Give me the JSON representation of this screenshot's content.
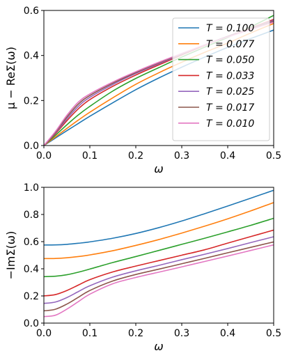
{
  "chart_data": [
    {
      "type": "line",
      "xlabel": "ω",
      "ylabel": "μ − ReΣ(ω)",
      "xlim": [
        0.0,
        0.5
      ],
      "ylim": [
        0.0,
        0.6
      ],
      "xticks": [
        "0.0",
        "0.1",
        "0.2",
        "0.3",
        "0.4",
        "0.5"
      ],
      "yticks": [
        "0.0",
        "0.2",
        "0.4",
        "0.6"
      ],
      "grid": false,
      "legend_location": "upper right",
      "x": [
        0.0,
        0.025,
        0.05,
        0.075,
        0.1,
        0.15,
        0.2,
        0.25,
        0.3,
        0.35,
        0.4,
        0.45,
        0.5
      ],
      "series": [
        {
          "name": "T = 0.100",
          "color": "#1f77b4",
          "values": [
            0.0,
            0.033,
            0.066,
            0.098,
            0.13,
            0.19,
            0.248,
            0.3,
            0.348,
            0.393,
            0.436,
            0.475,
            0.513
          ]
        },
        {
          "name": "T = 0.077",
          "color": "#ff7f0e",
          "values": [
            0.0,
            0.038,
            0.076,
            0.113,
            0.148,
            0.212,
            0.272,
            0.323,
            0.37,
            0.414,
            0.455,
            0.5,
            0.542
          ]
        },
        {
          "name": "T = 0.050",
          "color": "#2ca02c",
          "values": [
            0.0,
            0.045,
            0.092,
            0.136,
            0.174,
            0.242,
            0.298,
            0.346,
            0.393,
            0.437,
            0.48,
            0.527,
            0.578
          ]
        },
        {
          "name": "T = 0.033",
          "color": "#d62728",
          "values": [
            0.0,
            0.052,
            0.11,
            0.163,
            0.204,
            0.263,
            0.313,
            0.358,
            0.402,
            0.445,
            0.485,
            0.522,
            0.56
          ]
        },
        {
          "name": "T = 0.025",
          "color": "#9467bd",
          "values": [
            0.0,
            0.055,
            0.118,
            0.174,
            0.214,
            0.271,
            0.32,
            0.363,
            0.405,
            0.447,
            0.485,
            0.52,
            0.556
          ]
        },
        {
          "name": "T = 0.017",
          "color": "#8c564b",
          "values": [
            0.0,
            0.058,
            0.126,
            0.184,
            0.222,
            0.277,
            0.324,
            0.367,
            0.407,
            0.447,
            0.484,
            0.518,
            0.552
          ]
        },
        {
          "name": "T = 0.010",
          "color": "#e377c2",
          "values": [
            0.0,
            0.062,
            0.134,
            0.193,
            0.229,
            0.282,
            0.328,
            0.37,
            0.409,
            0.447,
            0.482,
            0.515,
            0.548
          ]
        }
      ]
    },
    {
      "type": "line",
      "xlabel": "ω",
      "ylabel": "−ImΣ(ω)",
      "xlim": [
        0.0,
        0.5
      ],
      "ylim": [
        0.0,
        1.0
      ],
      "xticks": [
        "0.0",
        "0.1",
        "0.2",
        "0.3",
        "0.4",
        "0.5"
      ],
      "yticks": [
        "0.0",
        "0.2",
        "0.4",
        "0.6",
        "0.8",
        "1.0"
      ],
      "grid": false,
      "x": [
        0.0,
        0.025,
        0.05,
        0.075,
        0.1,
        0.15,
        0.2,
        0.25,
        0.3,
        0.35,
        0.4,
        0.45,
        0.5
      ],
      "series": [
        {
          "name": "T = 0.100",
          "color": "#1f77b4",
          "values": [
            0.575,
            0.576,
            0.58,
            0.588,
            0.598,
            0.625,
            0.66,
            0.703,
            0.752,
            0.806,
            0.862,
            0.92,
            0.978
          ]
        },
        {
          "name": "T = 0.077",
          "color": "#ff7f0e",
          "values": [
            0.475,
            0.476,
            0.481,
            0.49,
            0.502,
            0.533,
            0.572,
            0.615,
            0.663,
            0.714,
            0.768,
            0.826,
            0.888
          ]
        },
        {
          "name": "T = 0.050",
          "color": "#2ca02c",
          "values": [
            0.342,
            0.345,
            0.356,
            0.375,
            0.398,
            0.446,
            0.49,
            0.535,
            0.58,
            0.625,
            0.672,
            0.72,
            0.772
          ]
        },
        {
          "name": "T = 0.033",
          "color": "#d62728",
          "values": [
            0.2,
            0.21,
            0.24,
            0.28,
            0.32,
            0.377,
            0.42,
            0.46,
            0.5,
            0.54,
            0.589,
            0.637,
            0.685
          ]
        },
        {
          "name": "T = 0.025",
          "color": "#9467bd",
          "values": [
            0.145,
            0.155,
            0.188,
            0.232,
            0.275,
            0.339,
            0.385,
            0.425,
            0.467,
            0.507,
            0.549,
            0.593,
            0.636
          ]
        },
        {
          "name": "T = 0.017",
          "color": "#8c564b",
          "values": [
            0.09,
            0.102,
            0.14,
            0.19,
            0.24,
            0.31,
            0.358,
            0.397,
            0.437,
            0.477,
            0.518,
            0.558,
            0.598
          ]
        },
        {
          "name": "T = 0.010",
          "color": "#e377c2",
          "values": [
            0.048,
            0.058,
            0.103,
            0.158,
            0.213,
            0.29,
            0.336,
            0.375,
            0.414,
            0.454,
            0.494,
            0.535,
            0.576
          ]
        }
      ]
    }
  ]
}
